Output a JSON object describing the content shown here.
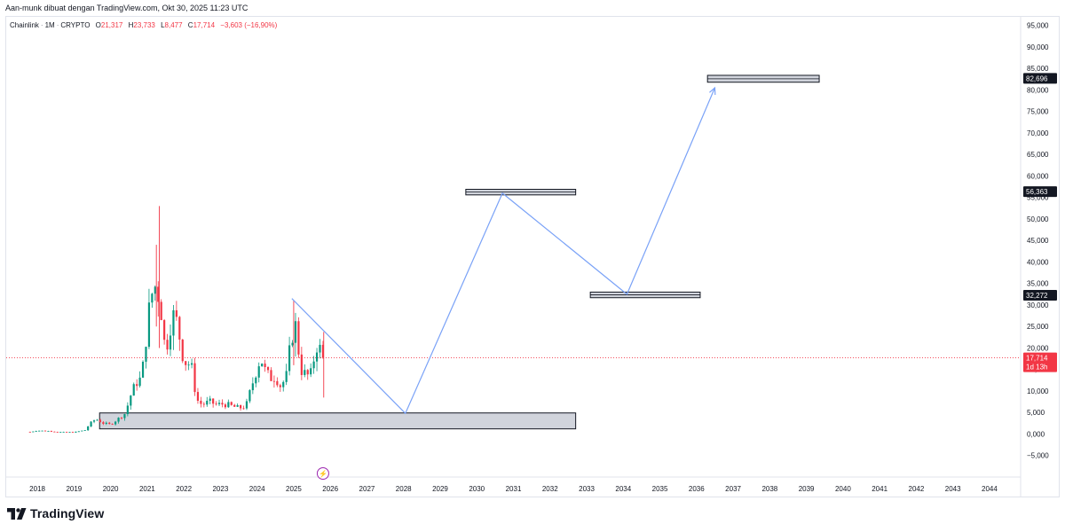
{
  "header": {
    "caption": "Aan-munk dibuat dengan TradingView.com, Okt 30, 2025 11:23 UTC"
  },
  "legend": {
    "symbol": "Chainlink",
    "interval": "1M",
    "exchange": "CRYPTO",
    "open_label": "O",
    "open": "21,317",
    "high_label": "H",
    "high": "23,733",
    "low_label": "L",
    "low": "8,477",
    "close_label": "C",
    "close": "17,714",
    "change": "−3,603 (−16,90%)"
  },
  "footer": {
    "brand": "TradingView"
  },
  "colors": {
    "up": "#089981",
    "down": "#f23645",
    "path": "#7aa2f7",
    "box_fill": "#d1d4dc",
    "label_bg": "#131722",
    "price_label_bg": "#f23645"
  },
  "chart_data": {
    "type": "candlestick",
    "title": "",
    "xlabel": "",
    "ylabel": "",
    "ylim": [
      -10000,
      97000
    ],
    "xlim": [
      2017.15,
      2044.85
    ],
    "y_ticks": [
      {
        "v": 95000,
        "label": "95,000"
      },
      {
        "v": 90000,
        "label": "90,000"
      },
      {
        "v": 85000,
        "label": "85,000"
      },
      {
        "v": 80000,
        "label": "80,000"
      },
      {
        "v": 75000,
        "label": "75,000"
      },
      {
        "v": 70000,
        "label": "70,000"
      },
      {
        "v": 65000,
        "label": "65,000"
      },
      {
        "v": 60000,
        "label": "60,000"
      },
      {
        "v": 55000,
        "label": "55,000"
      },
      {
        "v": 50000,
        "label": "50,000"
      },
      {
        "v": 45000,
        "label": "45,000"
      },
      {
        "v": 40000,
        "label": "40,000"
      },
      {
        "v": 35000,
        "label": "35,000"
      },
      {
        "v": 30000,
        "label": "30,000"
      },
      {
        "v": 25000,
        "label": "25,000"
      },
      {
        "v": 20000,
        "label": "20,000"
      },
      {
        "v": 15000,
        "label": "15,000"
      },
      {
        "v": 10000,
        "label": "10,000"
      },
      {
        "v": 5000,
        "label": "5,000"
      },
      {
        "v": 0,
        "label": "0,000"
      },
      {
        "v": -5000,
        "label": "−5,000"
      }
    ],
    "x_ticks": [
      {
        "v": 2018,
        "label": "2018"
      },
      {
        "v": 2019,
        "label": "2019"
      },
      {
        "v": 2020,
        "label": "2020"
      },
      {
        "v": 2021,
        "label": "2021"
      },
      {
        "v": 2022,
        "label": "2022"
      },
      {
        "v": 2023,
        "label": "2023"
      },
      {
        "v": 2024,
        "label": "2024"
      },
      {
        "v": 2025,
        "label": "2025"
      },
      {
        "v": 2026,
        "label": "2026"
      },
      {
        "v": 2027,
        "label": "2027"
      },
      {
        "v": 2028,
        "label": "2028"
      },
      {
        "v": 2029,
        "label": "2029"
      },
      {
        "v": 2030,
        "label": "2030"
      },
      {
        "v": 2031,
        "label": "2031"
      },
      {
        "v": 2032,
        "label": "2032"
      },
      {
        "v": 2033,
        "label": "2033"
      },
      {
        "v": 2034,
        "label": "2034"
      },
      {
        "v": 2035,
        "label": "2035"
      },
      {
        "v": 2036,
        "label": "2036"
      },
      {
        "v": 2037,
        "label": "2037"
      },
      {
        "v": 2038,
        "label": "2038"
      },
      {
        "v": 2039,
        "label": "2039"
      },
      {
        "v": 2040,
        "label": "2040"
      },
      {
        "v": 2041,
        "label": "2041"
      },
      {
        "v": 2042,
        "label": "2042"
      },
      {
        "v": 2043,
        "label": "2043"
      },
      {
        "v": 2044,
        "label": "2044"
      }
    ],
    "candle_anchors": [
      [
        2017.8,
        500
      ],
      [
        2018.0,
        800
      ],
      [
        2018.3,
        700
      ],
      [
        2018.6,
        450
      ],
      [
        2019.0,
        400
      ],
      [
        2019.3,
        900
      ],
      [
        2019.45,
        2500
      ],
      [
        2019.6,
        3500
      ],
      [
        2019.8,
        2500
      ],
      [
        2020.0,
        2200
      ],
      [
        2020.2,
        3500
      ],
      [
        2020.4,
        4800
      ],
      [
        2020.55,
        9000
      ],
      [
        2020.7,
        12000
      ],
      [
        2020.85,
        13000
      ],
      [
        2021.0,
        25000
      ],
      [
        2021.1,
        32000
      ],
      [
        2021.25,
        35000
      ],
      [
        2021.4,
        28000
      ],
      [
        2021.5,
        18000
      ],
      [
        2021.6,
        25000
      ],
      [
        2021.75,
        28000
      ],
      [
        2021.9,
        22000
      ],
      [
        2022.0,
        17000
      ],
      [
        2022.2,
        16000
      ],
      [
        2022.35,
        8000
      ],
      [
        2022.5,
        6800
      ],
      [
        2022.7,
        7500
      ],
      [
        2022.9,
        6800
      ],
      [
        2023.1,
        7000
      ],
      [
        2023.3,
        6500
      ],
      [
        2023.5,
        6000
      ],
      [
        2023.7,
        6500
      ],
      [
        2023.8,
        9500
      ],
      [
        2023.95,
        14000
      ],
      [
        2024.1,
        18000
      ],
      [
        2024.2,
        15000
      ],
      [
        2024.35,
        13000
      ],
      [
        2024.5,
        13500
      ],
      [
        2024.65,
        11000
      ],
      [
        2024.8,
        13500
      ],
      [
        2024.95,
        23000
      ],
      [
        2025.05,
        25000
      ],
      [
        2025.2,
        15000
      ],
      [
        2025.35,
        13500
      ],
      [
        2025.5,
        14000
      ],
      [
        2025.6,
        21000
      ],
      [
        2025.7,
        20000
      ],
      [
        2025.82,
        17714
      ]
    ],
    "spikes": [
      {
        "x": 2021.33,
        "high": 53000,
        "low": 20000
      },
      {
        "x": 2021.25,
        "high": 44000,
        "low": 25000
      },
      {
        "x": 2025.0,
        "high": 31000,
        "low": 16000
      },
      {
        "x": 2025.82,
        "high": 23733,
        "low": 8477
      }
    ],
    "projection_path": [
      {
        "x": 2024.95,
        "y": 31500
      },
      {
        "x": 2028.05,
        "y": 4800
      },
      {
        "x": 2030.7,
        "y": 56000
      },
      {
        "x": 2034.1,
        "y": 32500
      },
      {
        "x": 2036.5,
        "y": 80500
      }
    ],
    "zones": [
      {
        "x1": 2019.7,
        "x2": 2032.7,
        "y1": 1200,
        "y2": 4900
      },
      {
        "x1": 2029.7,
        "x2": 2032.7,
        "y1": 55600,
        "y2": 56900
      },
      {
        "x1": 2033.1,
        "x2": 2036.1,
        "y1": 31700,
        "y2": 33000
      },
      {
        "x1": 2036.3,
        "x2": 2039.35,
        "y1": 81800,
        "y2": 83400
      }
    ],
    "price_labels": [
      {
        "value": 82696,
        "text": "82,696"
      },
      {
        "value": 56363,
        "text": "56,363"
      },
      {
        "value": 32272,
        "text": "32,272"
      }
    ],
    "current_price": {
      "value": 17714,
      "text": "17,714",
      "countdown": "1d 13h"
    },
    "event_marker": {
      "x": 2025.8,
      "symbol": "⚡"
    }
  }
}
